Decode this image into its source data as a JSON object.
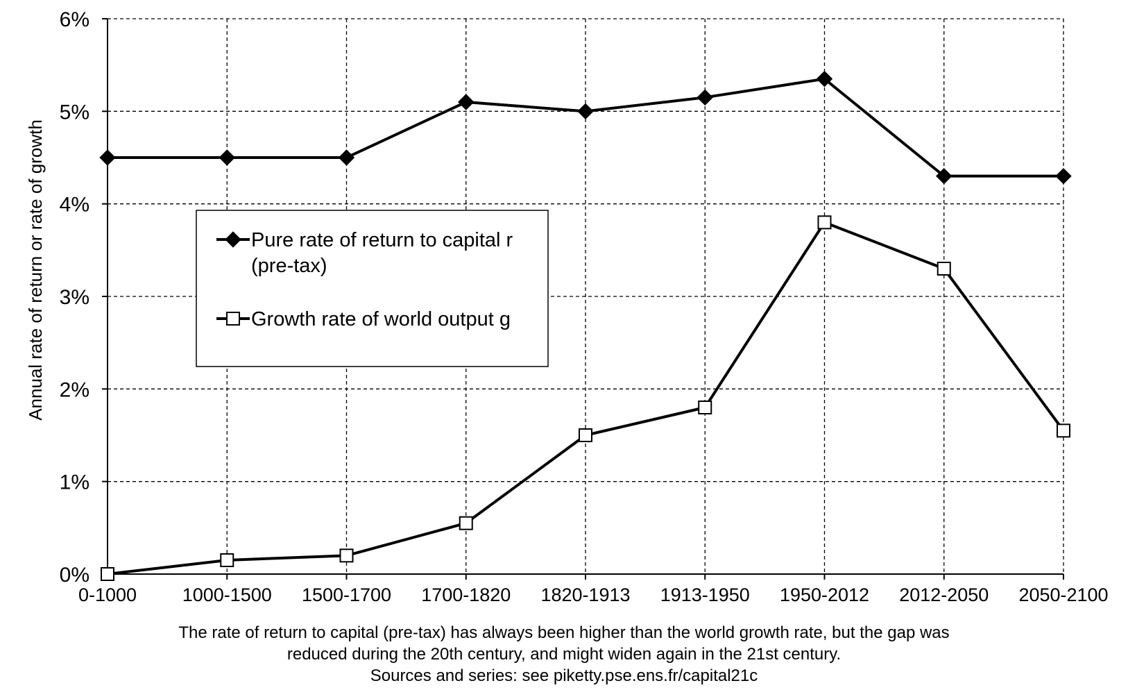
{
  "chart_data": {
    "type": "line",
    "categories": [
      "0-1000",
      "1000-1500",
      "1500-1700",
      "1700-1820",
      "1820-1913",
      "1913-1950",
      "1950-2012",
      "2012-2050",
      "2050-2100"
    ],
    "series": [
      {
        "name": "Pure rate of return to capital r (pre-tax)",
        "name_lines": [
          "Pure rate of return to capital r",
          "(pre-tax)"
        ],
        "marker": "filled-diamond",
        "values": [
          4.5,
          4.5,
          4.5,
          5.1,
          5.0,
          5.15,
          5.35,
          4.3,
          4.3
        ]
      },
      {
        "name": "Growth rate of world output g",
        "name_lines": [
          "Growth rate of world output g"
        ],
        "marker": "open-square",
        "values": [
          0.0,
          0.15,
          0.2,
          0.55,
          1.5,
          1.8,
          3.8,
          3.3,
          1.55
        ]
      }
    ],
    "ylim": [
      0,
      6
    ],
    "yticks": [
      0,
      1,
      2,
      3,
      4,
      5,
      6
    ],
    "ytick_labels": [
      "0%",
      "1%",
      "2%",
      "3%",
      "4%",
      "5%",
      "6%"
    ],
    "ylabel": "Annual rate of return or rate of growth",
    "xlabel": "",
    "title": "",
    "grid": "dashed, on",
    "legend_placement": "center-left",
    "caption_lines": [
      "The rate of return to capital (pre-tax) has always been higher than the world growth rate, but the gap was",
      "reduced during the 20th century, and might widen again in the 21st century.",
      "Sources and series: see piketty.pse.ens.fr/capital21c"
    ],
    "colors": {
      "line": "#000000",
      "grid": "#000000",
      "background": "#ffffff",
      "open_marker_fill": "#ffffff"
    }
  }
}
